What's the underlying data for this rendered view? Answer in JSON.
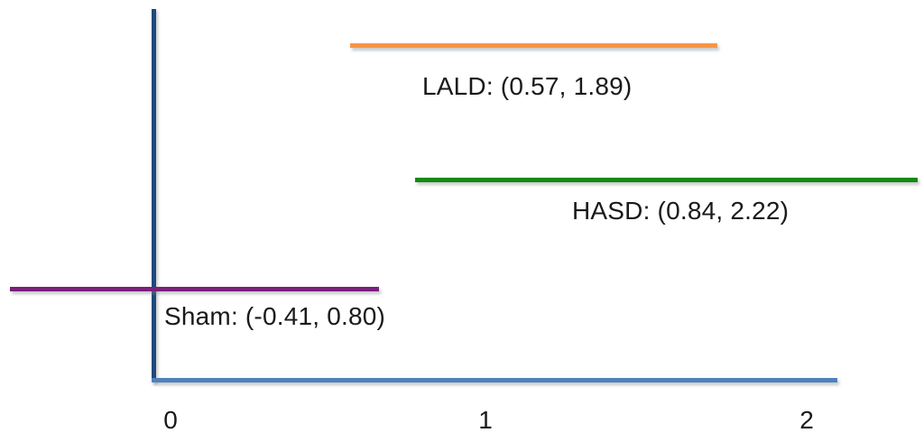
{
  "chart_data": {
    "type": "line",
    "title": "",
    "xlabel": "",
    "ylabel": "",
    "xlim": [
      -0.5,
      2.15
    ],
    "grid": false,
    "legend": "none",
    "series": [
      {
        "name": "LALD",
        "interval_start": 0.57,
        "interval_end": 1.89,
        "label": "LALD: (0.57, 1.89)",
        "color": "#F79646"
      },
      {
        "name": "HASD",
        "interval_start": 0.84,
        "interval_end": 2.22,
        "label": "HASD: (0.84, 2.22)",
        "color": "#128A12"
      },
      {
        "name": "Sham",
        "interval_start": -0.41,
        "interval_end": 0.8,
        "label": "Sham: (-0.41, 0.80)",
        "color": "#7A1F7D"
      }
    ],
    "x_tick_labels": [
      "0",
      "1",
      "2"
    ],
    "axis_colors": {
      "y_axis": "#1F497D",
      "x_axis": "#4F81BD"
    },
    "text_color": "#1a1a1a"
  }
}
